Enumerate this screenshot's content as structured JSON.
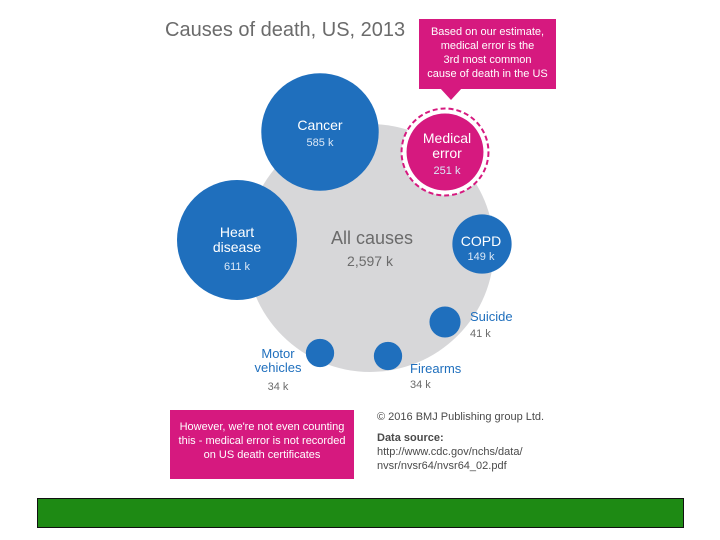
{
  "colors": {
    "bubble_blue": "#1f6fbd",
    "all_causes_grey": "#d7d7d9",
    "accent_magenta": "#d6197f",
    "label_blue": "#1f6fbd",
    "footer_bar_green": "#1e8a14"
  },
  "chart_data": {
    "type": "bubble",
    "title": "Causes of death, US, 2013",
    "total": {
      "label": "All causes",
      "value_label": "2,597 k",
      "value": 2597
    },
    "bubbles": [
      {
        "name": "Cancer",
        "value": 585,
        "value_label": "585 k",
        "highlight": false
      },
      {
        "name": "Medical error",
        "value": 251,
        "value_label": "251 k",
        "highlight": true
      },
      {
        "name": "Heart disease",
        "value": 611,
        "value_label": "611 k",
        "highlight": false
      },
      {
        "name": "COPD",
        "value": 149,
        "value_label": "149 k",
        "highlight": false
      },
      {
        "name": "Suicide",
        "value": 41,
        "value_label": "41 k",
        "highlight": false
      },
      {
        "name": "Firearms",
        "value": 34,
        "value_label": "34 k",
        "highlight": false
      },
      {
        "name": "Motor vehicles",
        "value": 34,
        "value_label": "34 k",
        "highlight": false
      }
    ],
    "label_lines": {
      "Cancer": [
        "Cancer"
      ],
      "Medical error": [
        "Medical",
        "error"
      ],
      "Heart disease": [
        "Heart",
        "disease"
      ],
      "COPD": [
        "COPD"
      ],
      "Suicide": [
        "Suicide"
      ],
      "Firearms": [
        "Firearms"
      ],
      "Motor vehicles": [
        "Motor",
        "vehicles"
      ]
    }
  },
  "callout_top": {
    "lines": [
      "Based on our estimate,",
      "medical error is the",
      "3rd most common",
      "cause of death in the US"
    ]
  },
  "callout_bottom": {
    "lines": [
      "However, we're not even counting",
      "this - medical error is not recorded",
      "on US death certificates"
    ]
  },
  "source": {
    "copyright": "© 2016 BMJ Publishing group Ltd.",
    "heading": "Data source:",
    "url_lines": [
      "http://www.cdc.gov/nchs/data/",
      "nvsr/nvsr64/nvsr64_02.pdf"
    ]
  }
}
